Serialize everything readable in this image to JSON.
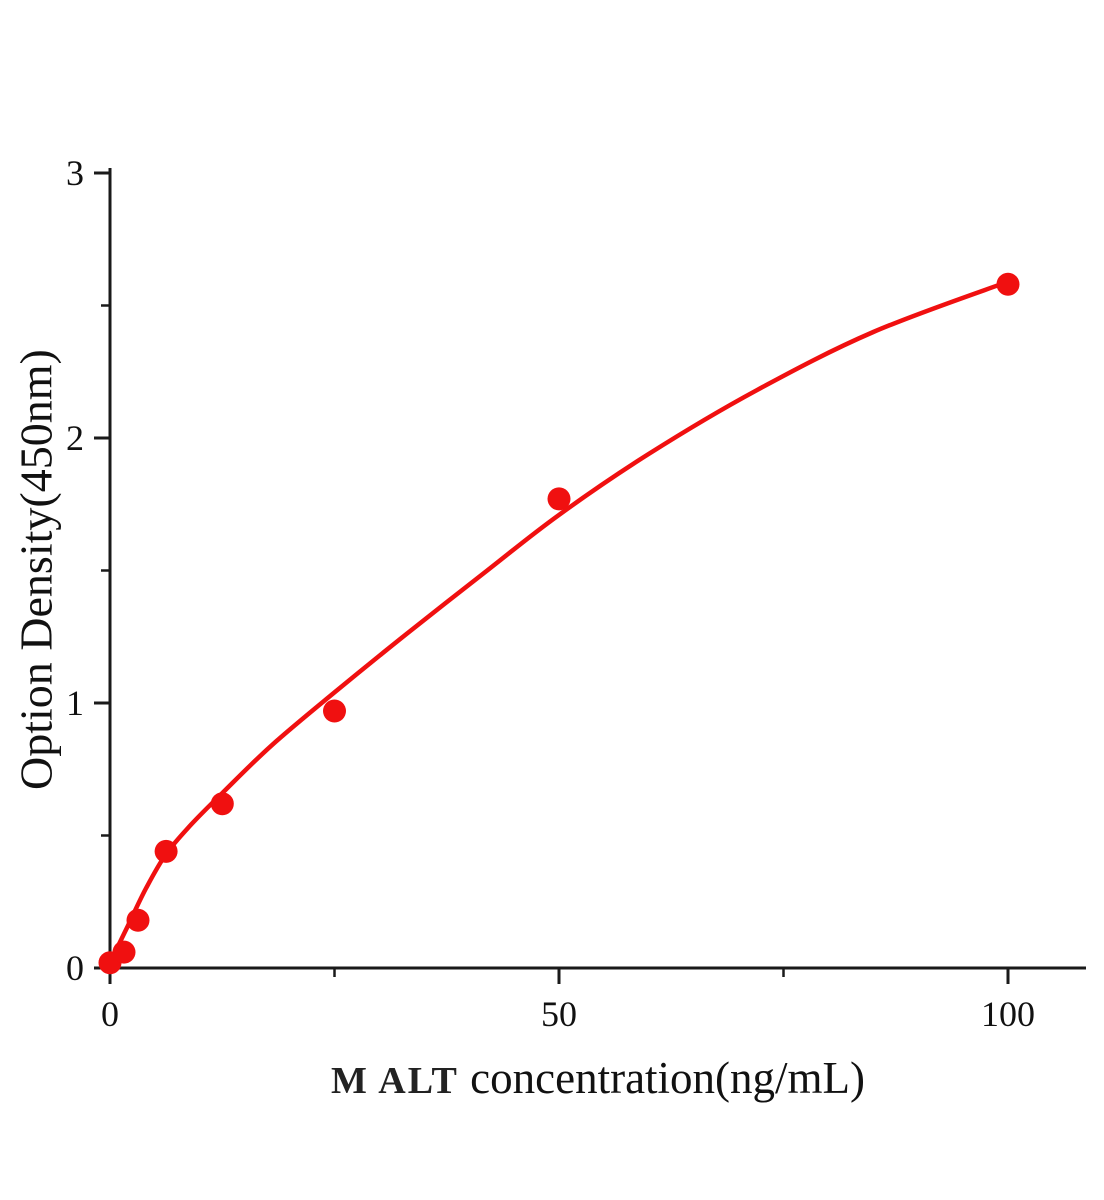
{
  "figure": {
    "background": "#ffffff"
  },
  "chart_data": {
    "type": "scatter",
    "title": "",
    "xlabel_bold": "M ALT",
    "xlabel_rest": " concentration(ng/mL)",
    "ylabel": "Option Density(450nm)",
    "xlim": [
      0,
      108.7
    ],
    "ylim": [
      0,
      3
    ],
    "x_major_ticks": [
      0,
      50,
      100
    ],
    "x_minor_ticks": [
      25,
      75
    ],
    "y_major_ticks": [
      0,
      1,
      2,
      3
    ],
    "y_minor_ticks": [
      0.5,
      1.5,
      2.5
    ],
    "grid": false,
    "legend_position": "none",
    "axis_color": "#1a1a1a",
    "series_color": "#f01010",
    "marker_radius": 11.5,
    "curve_width": 4.5,
    "series": [
      {
        "name": "standard-points",
        "type": "scatter",
        "points": [
          [
            0,
            0.02
          ],
          [
            1.56,
            0.06
          ],
          [
            3.12,
            0.18
          ],
          [
            6.25,
            0.44
          ],
          [
            12.5,
            0.62
          ],
          [
            25,
            0.97
          ],
          [
            50,
            1.77
          ],
          [
            100,
            2.58
          ]
        ]
      },
      {
        "name": "fit-curve",
        "type": "line",
        "points": [
          [
            0,
            0.02
          ],
          [
            2,
            0.16
          ],
          [
            4,
            0.3
          ],
          [
            6.25,
            0.43
          ],
          [
            9,
            0.54
          ],
          [
            12.5,
            0.66
          ],
          [
            18,
            0.84
          ],
          [
            25,
            1.04
          ],
          [
            33,
            1.26
          ],
          [
            42,
            1.5
          ],
          [
            50,
            1.71
          ],
          [
            60,
            1.94
          ],
          [
            72,
            2.18
          ],
          [
            85,
            2.4
          ],
          [
            100,
            2.59
          ]
        ]
      }
    ]
  }
}
